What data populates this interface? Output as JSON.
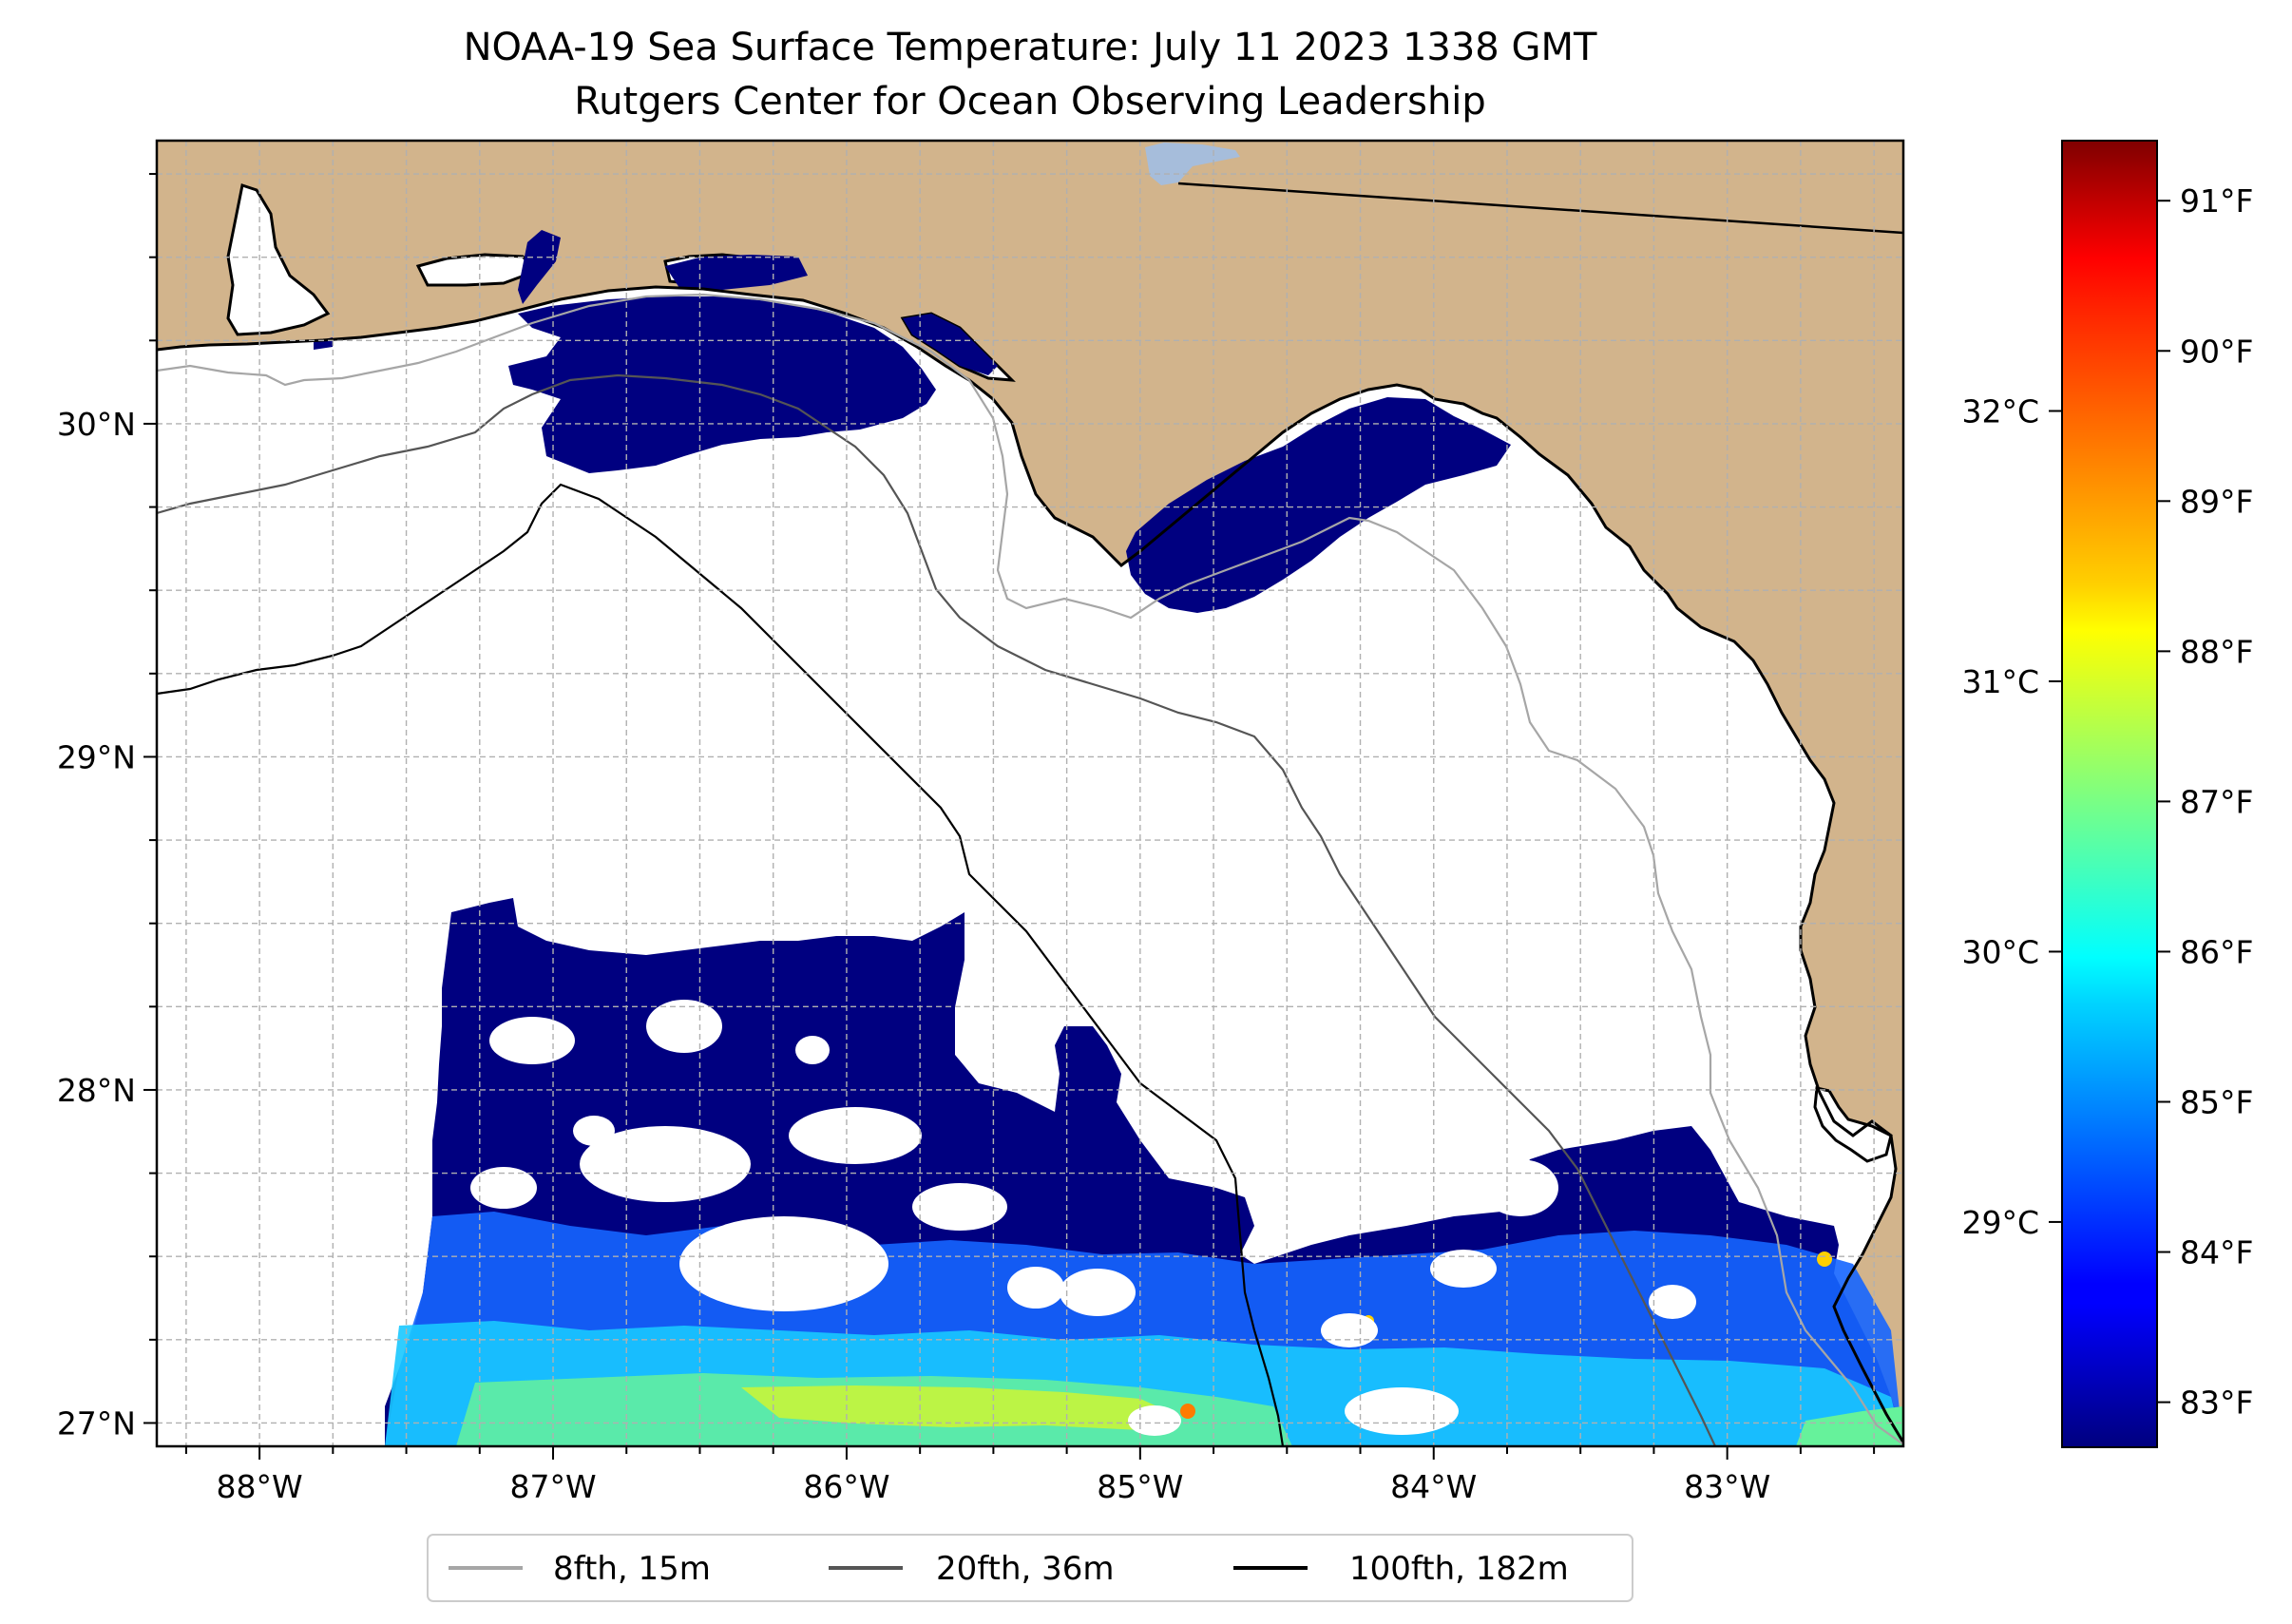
{
  "title": {
    "line1": "NOAA-19 Sea Surface Temperature: July 11 2023 1338 GMT",
    "line2": "Rutgers Center for Ocean Observing Leadership"
  },
  "map": {
    "extent": {
      "lon_min": -88.35,
      "lon_max": -82.4,
      "lat_min": 26.93,
      "lat_max": 30.85
    },
    "longitude_ticks": [
      {
        "value": -88,
        "label": "88°W"
      },
      {
        "value": -87,
        "label": "87°W"
      },
      {
        "value": -86,
        "label": "86°W"
      },
      {
        "value": -85,
        "label": "85°W"
      },
      {
        "value": -84,
        "label": "84°W"
      },
      {
        "value": -83,
        "label": "83°W"
      }
    ],
    "latitude_ticks": [
      {
        "value": 30,
        "label": "30°N"
      },
      {
        "value": 29,
        "label": "29°N"
      },
      {
        "value": 28,
        "label": "28°N"
      },
      {
        "value": 27,
        "label": "27°N"
      }
    ],
    "gridlines": true,
    "gridline_interval_deg": 0.25,
    "colors": {
      "land": "#d2b48c",
      "ocean_no_data": "#ffffff",
      "lake": "#a6bddb",
      "grid": "#b0b0b0"
    }
  },
  "legend": {
    "placement": "bottom-center",
    "entries": [
      {
        "label": "8fth, 15m",
        "color": "#a6a6a6"
      },
      {
        "label": "20fth, 36m",
        "color": "#555555"
      },
      {
        "label": "100fth, 182m",
        "color": "#000000"
      }
    ]
  },
  "colorbar": {
    "colormap": "jet",
    "range_f": [
      82.7,
      91.4
    ],
    "fahrenheit_ticks": [
      {
        "value": 83,
        "label": "83°F"
      },
      {
        "value": 84,
        "label": "84°F"
      },
      {
        "value": 85,
        "label": "85°F"
      },
      {
        "value": 86,
        "label": "86°F"
      },
      {
        "value": 87,
        "label": "87°F"
      },
      {
        "value": 88,
        "label": "88°F"
      },
      {
        "value": 89,
        "label": "89°F"
      },
      {
        "value": 90,
        "label": "90°F"
      },
      {
        "value": 91,
        "label": "91°F"
      }
    ],
    "celsius_ticks": [
      {
        "value": 29,
        "label": "29°C"
      },
      {
        "value": 30,
        "label": "30°C"
      },
      {
        "value": 31,
        "label": "31°C"
      },
      {
        "value": 32,
        "label": "32°C"
      }
    ]
  }
}
